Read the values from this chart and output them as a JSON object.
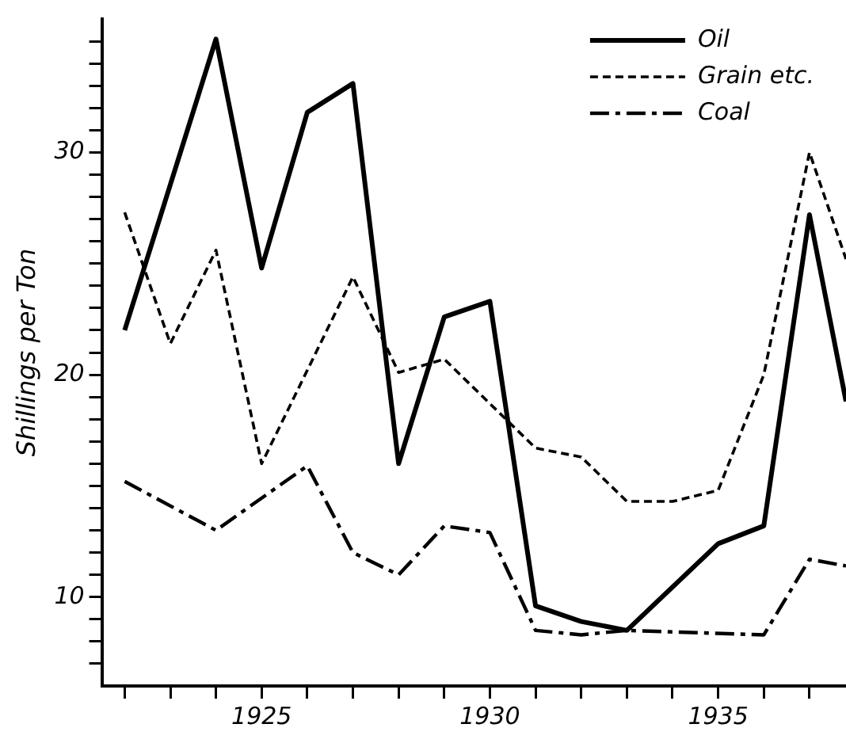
{
  "chart_data": {
    "type": "line",
    "ylabel": "Shillings per Ton",
    "xlim": [
      1921.5,
      1937.8
    ],
    "ylim": [
      6,
      36
    ],
    "xticks": [
      {
        "value": 1922,
        "label": null
      },
      {
        "value": 1923,
        "label": null
      },
      {
        "value": 1924,
        "label": null
      },
      1925,
      {
        "value": 1926,
        "label": null
      },
      {
        "value": 1927,
        "label": null
      },
      {
        "value": 1928,
        "label": null
      },
      {
        "value": 1929,
        "label": null
      },
      1930,
      {
        "value": 1931,
        "label": null
      },
      {
        "value": 1932,
        "label": null
      },
      {
        "value": 1933,
        "label": null
      },
      {
        "value": 1934,
        "label": null
      },
      1935,
      {
        "value": 1936,
        "label": null
      },
      {
        "value": 1937,
        "label": null
      }
    ],
    "yticks": [
      {
        "value": 7,
        "label": null
      },
      {
        "value": 8,
        "label": null
      },
      {
        "value": 9,
        "label": null
      },
      10,
      {
        "value": 11,
        "label": null
      },
      {
        "value": 12,
        "label": null
      },
      {
        "value": 13,
        "label": null
      },
      {
        "value": 14,
        "label": null
      },
      {
        "value": 15,
        "label": null
      },
      {
        "value": 16,
        "label": null
      },
      {
        "value": 17,
        "label": null
      },
      {
        "value": 18,
        "label": null
      },
      {
        "value": 19,
        "label": null
      },
      20,
      {
        "value": 21,
        "label": null
      },
      {
        "value": 22,
        "label": null
      },
      {
        "value": 23,
        "label": null
      },
      {
        "value": 24,
        "label": null
      },
      {
        "value": 25,
        "label": null
      },
      {
        "value": 26,
        "label": null
      },
      {
        "value": 27,
        "label": null
      },
      {
        "value": 28,
        "label": null
      },
      {
        "value": 29,
        "label": null
      },
      30,
      {
        "value": 31,
        "label": null
      },
      {
        "value": 32,
        "label": null
      },
      {
        "value": 33,
        "label": null
      },
      {
        "value": 34,
        "label": null
      },
      {
        "value": 35,
        "label": null
      }
    ],
    "grid": false,
    "legend": "top right",
    "marker": "none",
    "series": [
      {
        "name": "Oil",
        "color": "#000000",
        "line_style": "solid",
        "x": [
          1922,
          1924,
          1925,
          1926,
          1927,
          1928,
          1929,
          1930,
          1931,
          1932,
          1933,
          1935,
          1936,
          1937,
          1937.8
        ],
        "values": [
          22.0,
          35.1,
          24.8,
          31.8,
          33.1,
          16.0,
          22.6,
          23.3,
          9.6,
          8.9,
          8.5,
          12.4,
          13.2,
          27.2,
          18.8
        ]
      },
      {
        "name": "Grain etc.",
        "color": "#000000",
        "line_style": "dashed",
        "x": [
          1922,
          1923,
          1924,
          1925,
          1927,
          1928,
          1929,
          1931,
          1932,
          1933,
          1934,
          1935,
          1936,
          1937,
          1937.8
        ],
        "values": [
          27.3,
          21.4,
          25.6,
          16.0,
          24.4,
          20.1,
          20.7,
          16.7,
          16.3,
          14.3,
          14.3,
          14.8,
          20.0,
          30.0,
          25.2
        ]
      },
      {
        "name": "Coal",
        "color": "#000000",
        "line_style": "dashdot",
        "x": [
          1922,
          1924,
          1926,
          1927,
          1928,
          1929,
          1930,
          1931,
          1932,
          1933,
          1936,
          1937,
          1937.8
        ],
        "values": [
          15.2,
          13.0,
          15.9,
          12.0,
          11.0,
          13.2,
          12.9,
          8.5,
          8.3,
          8.5,
          8.3,
          11.7,
          11.4
        ]
      }
    ]
  }
}
